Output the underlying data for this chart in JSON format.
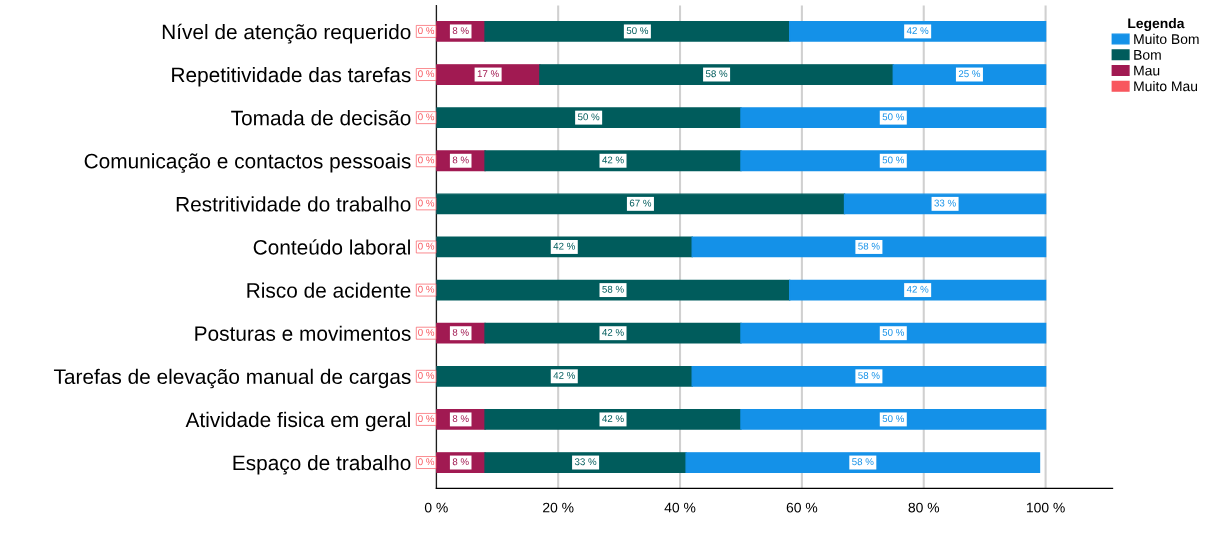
{
  "chart_data": {
    "type": "bar",
    "orientation": "horizontal",
    "stacked": true,
    "legend_title": "Legenda",
    "legend": "top right",
    "grid": "x",
    "categories": [
      "Nível de atenção requerido",
      "Repetitividade das tarefas",
      "Tomada de decisão",
      "Comunicação e contactos pessoais",
      "Restritividade do trabalho",
      "Conteúdo laboral",
      "Risco de acidente",
      "Posturas e movimentos",
      "Tarefas de elevação manual de cargas",
      "Atividade fisica em geral",
      "Espaço de trabalho"
    ],
    "xlim": [
      0,
      111
    ],
    "xticks": [
      {
        "value": 0,
        "label": "0 %"
      },
      {
        "value": 20,
        "label": "20 %"
      },
      {
        "value": 40,
        "label": "40 %"
      },
      {
        "value": 60,
        "label": "60 %"
      },
      {
        "value": 80,
        "label": "80 %"
      },
      {
        "value": 100,
        "label": "100 %"
      }
    ],
    "series": [
      {
        "name": "Muito Mau",
        "color": "#f8575e",
        "values": [
          0,
          0,
          0,
          0,
          0,
          0,
          0,
          0,
          0,
          0,
          0
        ],
        "value_labels": [
          "0 %",
          "0 %",
          "0 %",
          "0 %",
          "0 %",
          "0 %",
          "0 %",
          "0 %",
          "0 %",
          "0 %",
          "0 %"
        ]
      },
      {
        "name": "Mau",
        "color": "#a11a52",
        "values": [
          8,
          17,
          0,
          8,
          0,
          0,
          0,
          8,
          0,
          8,
          8
        ],
        "value_labels": [
          "8 %",
          "17 %",
          null,
          "8 %",
          null,
          null,
          null,
          "8 %",
          null,
          "8 %",
          "8 %"
        ]
      },
      {
        "name": "Bom",
        "color": "#005c5c",
        "values": [
          50,
          58,
          50,
          42,
          67,
          42,
          58,
          42,
          42,
          42,
          33
        ],
        "value_labels": [
          "50 %",
          "58 %",
          "50 %",
          "42 %",
          "67 %",
          "42 %",
          "58 %",
          "42 %",
          "42 %",
          "42 %",
          "33 %"
        ]
      },
      {
        "name": "Muito Bom",
        "color": "#1491e8",
        "values": [
          42,
          25,
          50,
          50,
          33,
          58,
          42,
          50,
          58,
          50,
          58
        ],
        "value_labels": [
          "42 %",
          "25 %",
          "50 %",
          "50 %",
          "33 %",
          "58 %",
          "42 %",
          "50 %",
          "58 %",
          "50 %",
          "58 %"
        ]
      }
    ]
  }
}
